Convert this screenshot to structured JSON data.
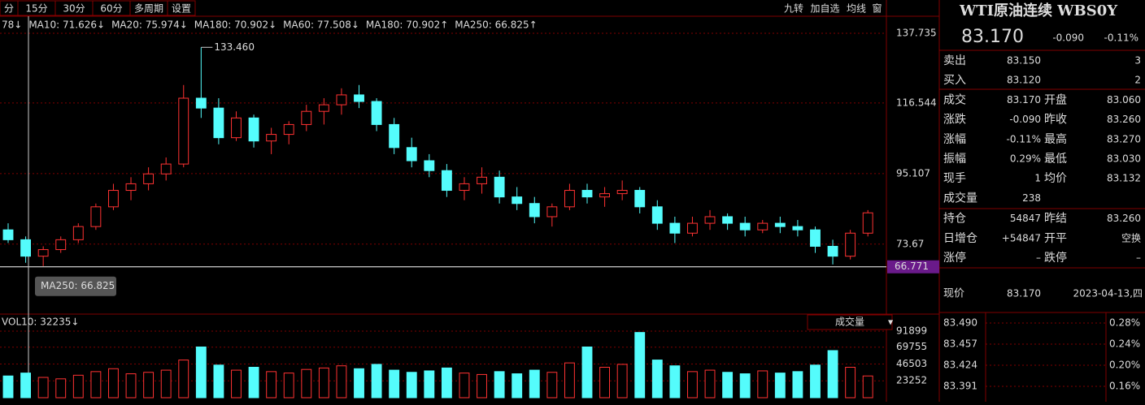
{
  "toolbar": {
    "periods": [
      "分",
      "15分",
      "30分",
      "60分",
      "多周期",
      "设置"
    ],
    "tools": [
      "九转",
      "加自选",
      "均线",
      "窗"
    ]
  },
  "ma_legend": [
    {
      "text": "78↓",
      "color": "#ffffff"
    },
    {
      "text": "MA10: 71.626↓",
      "color": "#ffff00"
    },
    {
      "text": "MA20: 75.974↓",
      "color": "#ff66ff"
    },
    {
      "text": "MA180: 70.902↓",
      "color": "#00e000"
    },
    {
      "text": "MA60: 77.508↓",
      "color": "#40d0ff"
    },
    {
      "text": "MA180: 70.902↑",
      "color": "#ffffcc"
    },
    {
      "text": "MA250: 66.825↑",
      "color": "#8899bb"
    }
  ],
  "chart_data": {
    "type": "candlestick",
    "up_color": "#ff3232",
    "down_color": "#54fcfc",
    "candles": [
      [
        78,
        80,
        74,
        75
      ],
      [
        75,
        76,
        68,
        70
      ],
      [
        70,
        73,
        67,
        72
      ],
      [
        72,
        76,
        71,
        75
      ],
      [
        75,
        80,
        74,
        79
      ],
      [
        79,
        86,
        78,
        85
      ],
      [
        85,
        92,
        84,
        90
      ],
      [
        90,
        94,
        87,
        92
      ],
      [
        92,
        97,
        90,
        95
      ],
      [
        95,
        100,
        93,
        98
      ],
      [
        98,
        122,
        97,
        118
      ],
      [
        118,
        133.46,
        112,
        115
      ],
      [
        115,
        118,
        104,
        106
      ],
      [
        106,
        114,
        105,
        112
      ],
      [
        112,
        113,
        103,
        105
      ],
      [
        105,
        109,
        101,
        107
      ],
      [
        107,
        111,
        104,
        110
      ],
      [
        110,
        116,
        108,
        114
      ],
      [
        114,
        118,
        110,
        116
      ],
      [
        116,
        121,
        113,
        119
      ],
      [
        119,
        122,
        115,
        117
      ],
      [
        117,
        118,
        108,
        110
      ],
      [
        110,
        112,
        101,
        103
      ],
      [
        103,
        106,
        97,
        99
      ],
      [
        99,
        101,
        94,
        96
      ],
      [
        96,
        98,
        88,
        90
      ],
      [
        90,
        94,
        87,
        92
      ],
      [
        92,
        97,
        89,
        94
      ],
      [
        94,
        96,
        86,
        88
      ],
      [
        88,
        91,
        84,
        86
      ],
      [
        86,
        88,
        80,
        82
      ],
      [
        82,
        86,
        79,
        85
      ],
      [
        85,
        92,
        84,
        90
      ],
      [
        90,
        92,
        86,
        88
      ],
      [
        88,
        91,
        85,
        89
      ],
      [
        89,
        93,
        87,
        90
      ],
      [
        90,
        91,
        83,
        85
      ],
      [
        85,
        87,
        78,
        80
      ],
      [
        80,
        82,
        74,
        77
      ],
      [
        77,
        82,
        76,
        80
      ],
      [
        80,
        84,
        78,
        82
      ],
      [
        82,
        83,
        78,
        80
      ],
      [
        80,
        82,
        76,
        78
      ],
      [
        78,
        81,
        77,
        80
      ],
      [
        80,
        82,
        77,
        79
      ],
      [
        79,
        81,
        76,
        78
      ],
      [
        78,
        79,
        71,
        73
      ],
      [
        73,
        75,
        67.5,
        70
      ],
      [
        70,
        78,
        69,
        77
      ],
      [
        77,
        84,
        76,
        83.17
      ]
    ],
    "ylim": [
      52.9,
      142.9
    ],
    "yticks": [
      137.735,
      116.544,
      95.107,
      73.67
    ],
    "high_label": "133.460",
    "high_value": 133.46,
    "ref_line": 66.771,
    "ma250_tip": "MA250: 66.825",
    "volume_label": "VOL10: 32235↓",
    "volume_menu": "成交量",
    "volumes": [
      30000,
      34000,
      28000,
      26000,
      31000,
      36000,
      40000,
      33000,
      35000,
      38000,
      52000,
      70000,
      45000,
      38000,
      42000,
      36000,
      34000,
      39000,
      41000,
      44000,
      40000,
      46000,
      38000,
      35000,
      37000,
      41000,
      34000,
      32000,
      36000,
      33000,
      38000,
      35000,
      48000,
      70000,
      42000,
      46000,
      90000,
      52000,
      44000,
      36000,
      38000,
      35000,
      33000,
      37000,
      34000,
      36000,
      45000,
      65000,
      42000,
      30000
    ],
    "vlim": [
      0,
      112000
    ],
    "vticks": [
      91899,
      69755,
      46503,
      23252
    ]
  },
  "quote": {
    "title": "WTI原油连续 WBS0Y",
    "price": "83.170",
    "change": "-0.090",
    "pct": "-0.11%",
    "rows": [
      [
        "卖出",
        "83.150",
        "",
        "3"
      ],
      [
        "买入",
        "83.120",
        "",
        "2"
      ],
      [
        "成交",
        "83.170",
        "开盘",
        "83.060"
      ],
      [
        "涨跌",
        "-0.090",
        "昨收",
        "83.260"
      ],
      [
        "涨幅",
        "-0.11%",
        "最高",
        "83.270"
      ],
      [
        "振幅",
        "0.29%",
        "最低",
        "83.030"
      ],
      [
        "现手",
        "1",
        "均价",
        "83.132"
      ],
      [
        "成交量",
        "238",
        "",
        ""
      ],
      [
        "持仓",
        "54847",
        "昨结",
        "83.260"
      ],
      [
        "日增仓",
        "+54847",
        "开平",
        "空换"
      ],
      [
        "涨停",
        "–",
        "跌停",
        "–"
      ]
    ],
    "now_label": "现价",
    "now_price": "83.170",
    "date": "2023-04-13,四",
    "mini_left": [
      "83.490",
      "83.457",
      "83.424",
      "83.391"
    ],
    "mini_right": [
      "0.28%",
      "0.24%",
      "0.20%",
      "0.16%"
    ]
  }
}
